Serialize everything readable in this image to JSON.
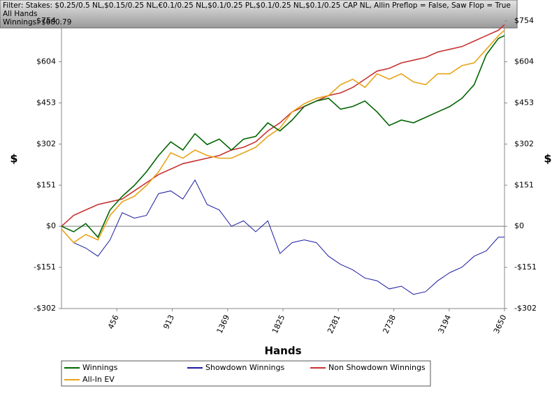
{
  "header": {
    "filter": "Filter: Stakes: $0.25/0.5 NL,$0.15/0.25 NL,€0.1/0.25 NL,$0.1/0.25 PL,$0.1/0.25 NL,$0.1/0.25 CAP NL, Allin Preflop = False, Saw Flop = True",
    "subtitle": "All Hands",
    "summary": "Winnings: $680.79"
  },
  "chart_data": {
    "type": "line",
    "xlabel": "Hands",
    "ylabel": "$",
    "y2label": "$",
    "xlim": [
      0,
      3650
    ],
    "xticks": [
      456,
      913,
      1369,
      1825,
      2281,
      2738,
      3194,
      3650
    ],
    "ylim": [
      -302,
      754
    ],
    "yticks": [
      {
        "value": -302,
        "label": "-$302"
      },
      {
        "value": -151,
        "label": "-$151"
      },
      {
        "value": 0,
        "label": "$0"
      },
      {
        "value": 151,
        "label": "$151"
      },
      {
        "value": 302,
        "label": "$302"
      },
      {
        "value": 453,
        "label": "$453"
      },
      {
        "value": 604,
        "label": "$604"
      },
      {
        "value": 754,
        "label": "$754"
      }
    ],
    "x": [
      0,
      100,
      200,
      300,
      400,
      500,
      600,
      700,
      800,
      900,
      1000,
      1100,
      1200,
      1300,
      1400,
      1500,
      1600,
      1700,
      1800,
      1900,
      2000,
      2100,
      2200,
      2300,
      2400,
      2500,
      2600,
      2700,
      2800,
      2900,
      3000,
      3100,
      3200,
      3300,
      3400,
      3500,
      3600,
      3650
    ],
    "series": [
      {
        "name": "Winnings",
        "color": "#006400",
        "values": [
          0,
          -20,
          10,
          -40,
          60,
          110,
          150,
          200,
          260,
          310,
          280,
          340,
          300,
          320,
          280,
          320,
          330,
          380,
          350,
          390,
          440,
          460,
          470,
          430,
          440,
          460,
          420,
          370,
          390,
          380,
          400,
          420,
          440,
          470,
          520,
          630,
          690,
          700
        ]
      },
      {
        "name": "Showdown Winnings",
        "color": "#1a1aa0",
        "values": [
          -10,
          -60,
          -80,
          -110,
          -50,
          50,
          30,
          40,
          120,
          130,
          100,
          170,
          80,
          60,
          0,
          20,
          -20,
          20,
          -100,
          -60,
          -50,
          -60,
          -110,
          -140,
          -160,
          -190,
          -200,
          -230,
          -220,
          -250,
          -240,
          -200,
          -170,
          -150,
          -110,
          -90,
          -40,
          -40
        ]
      },
      {
        "name": "Non Showdown Winnings",
        "color": "#c83232",
        "values": [
          0,
          40,
          60,
          80,
          90,
          100,
          130,
          160,
          190,
          210,
          230,
          240,
          250,
          260,
          280,
          290,
          310,
          350,
          380,
          420,
          440,
          460,
          480,
          490,
          510,
          540,
          570,
          580,
          600,
          610,
          620,
          640,
          650,
          660,
          680,
          700,
          720,
          740
        ]
      },
      {
        "name": "All-In EV",
        "color": "#e8a317",
        "values": [
          -10,
          -60,
          -30,
          -50,
          40,
          90,
          110,
          150,
          200,
          270,
          250,
          280,
          260,
          250,
          250,
          270,
          290,
          330,
          360,
          420,
          450,
          470,
          480,
          520,
          540,
          510,
          560,
          540,
          560,
          530,
          520,
          560,
          560,
          590,
          600,
          650,
          700,
          720
        ]
      }
    ]
  }
}
